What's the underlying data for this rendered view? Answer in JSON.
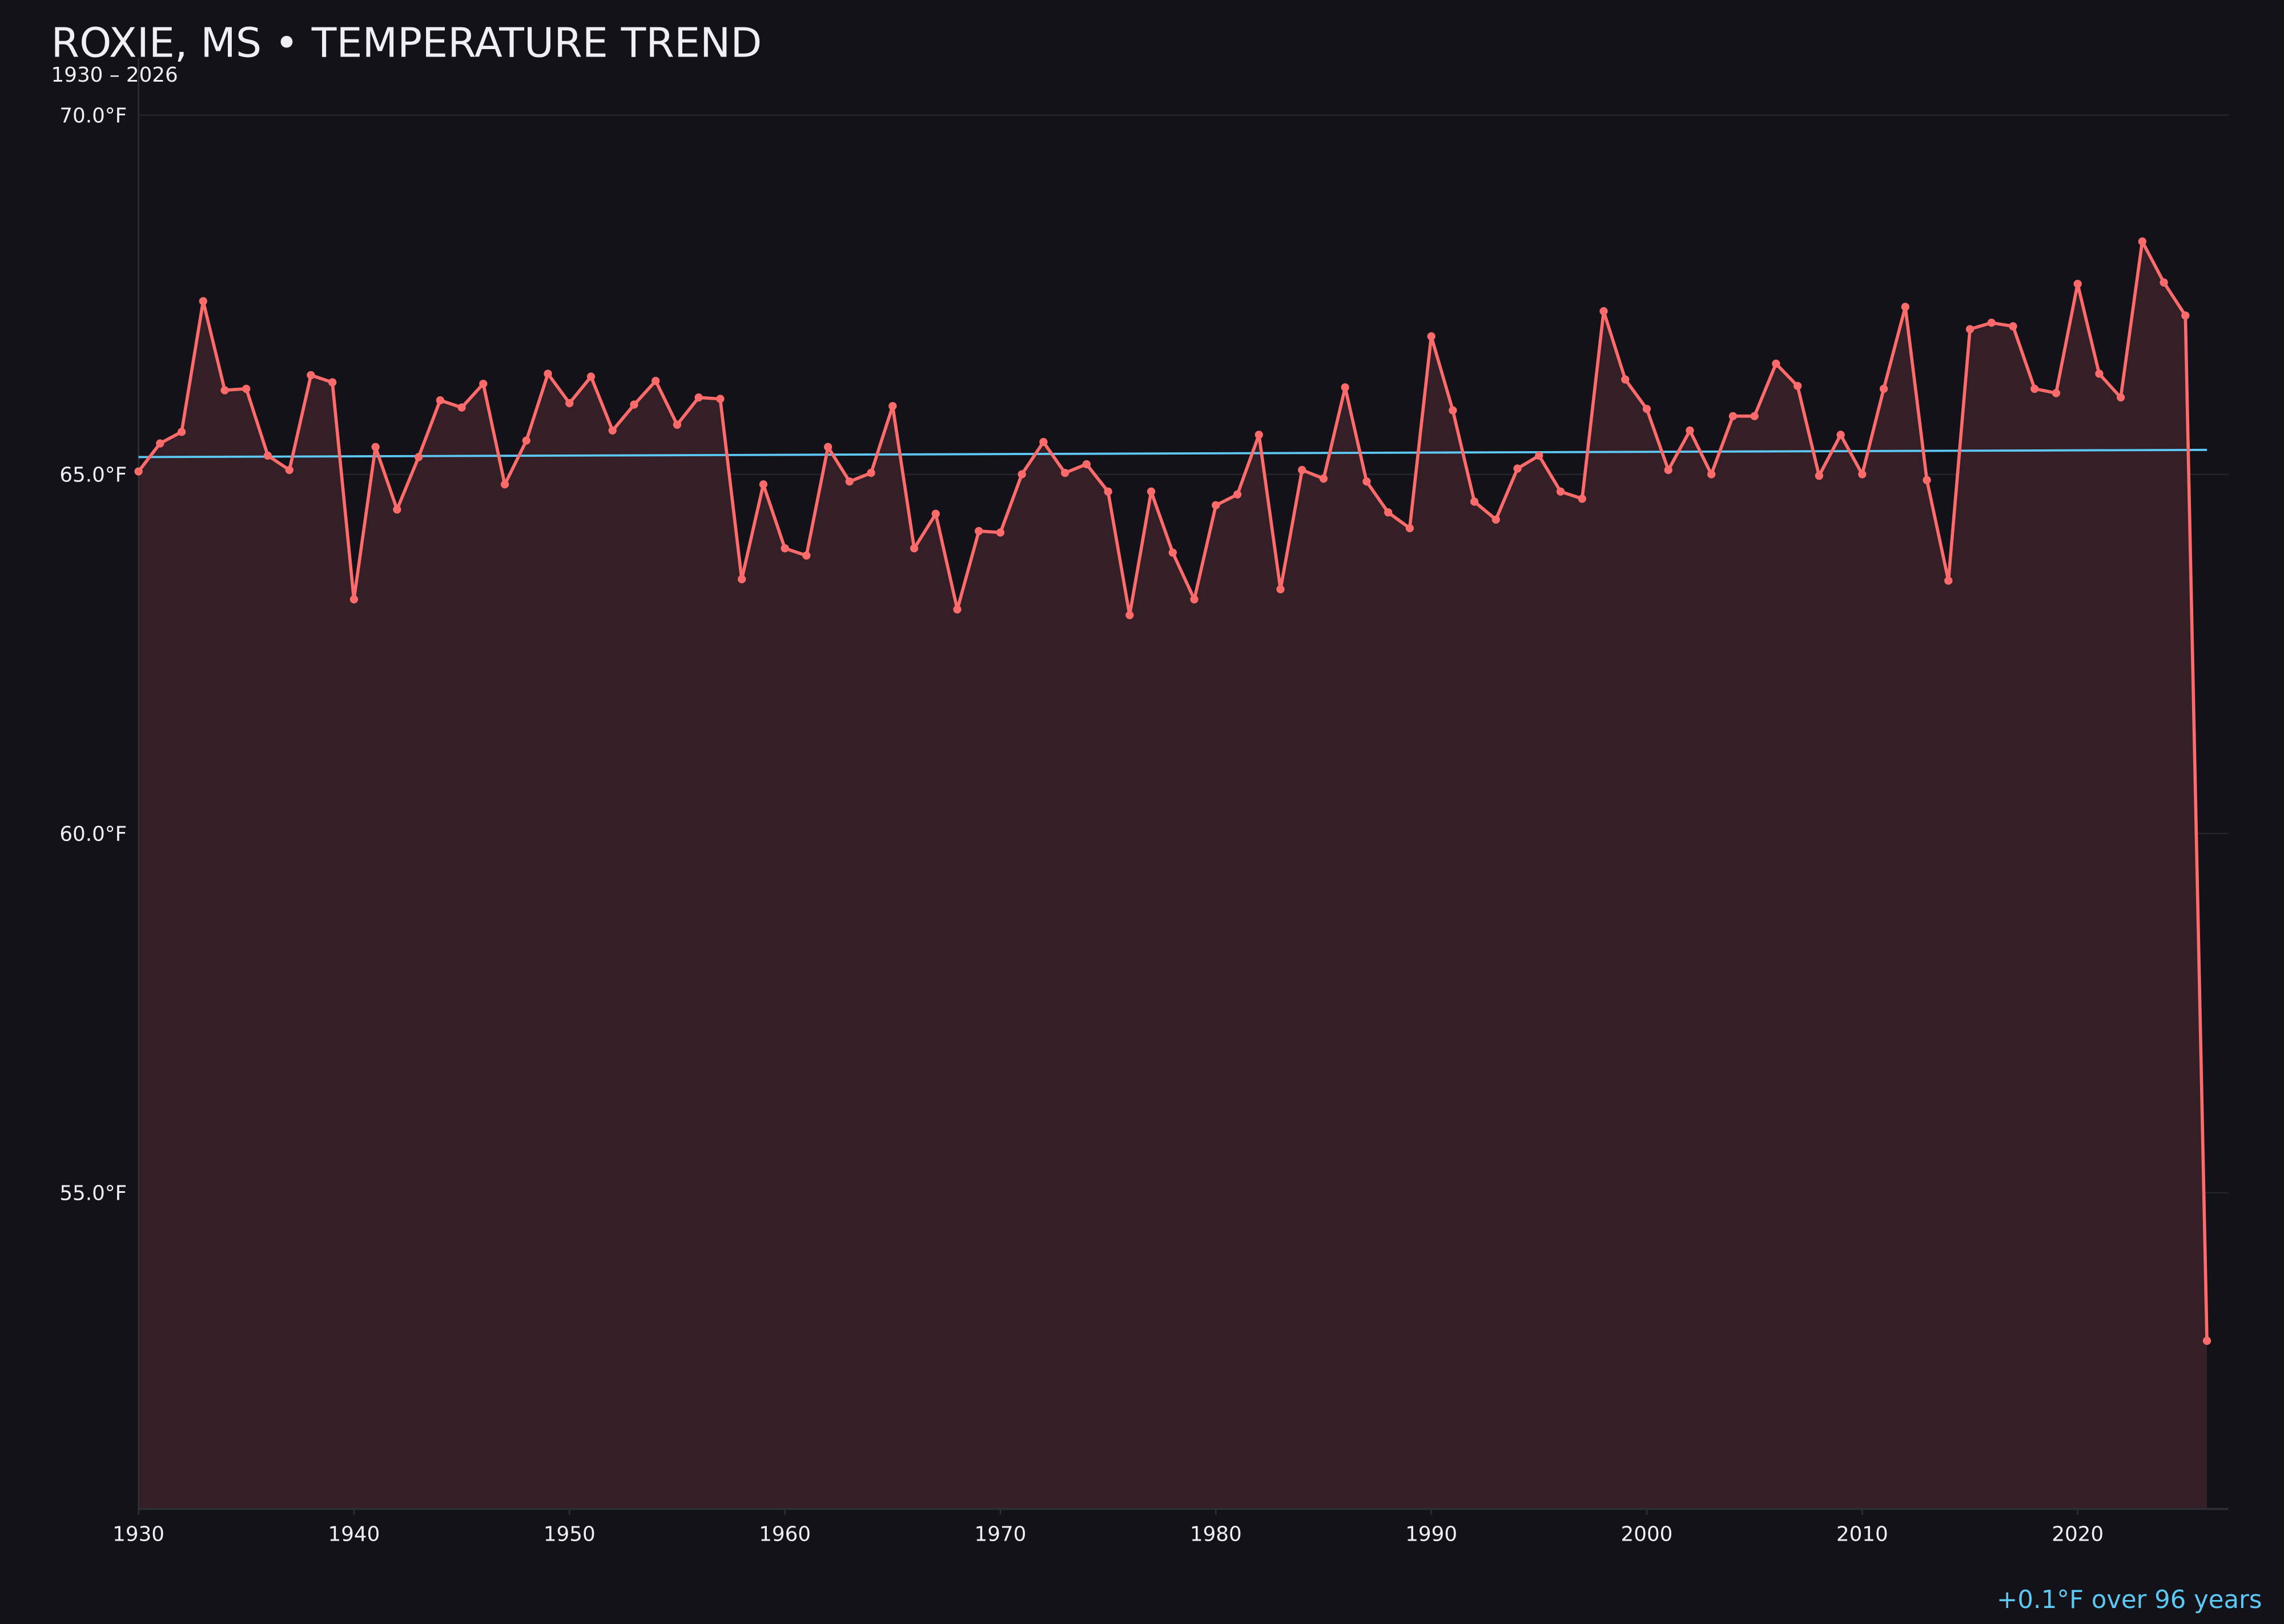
{
  "chart_data": {
    "type": "line",
    "title": "ROXIE, MS • TEMPERATURE TREND",
    "subtitle": "1930 – 2026",
    "annotation": "+0.1°F over 96 years",
    "xlabel": "",
    "ylabel": "",
    "xlim": [
      1930,
      2027
    ],
    "ylim": [
      50.6,
      70.6
    ],
    "grid": true,
    "x_ticks": [
      "1930",
      "1940",
      "1950",
      "1960",
      "1970",
      "1980",
      "1990",
      "2000",
      "2010",
      "2020"
    ],
    "y_ticks": [
      "55.0°F",
      "60.0°F",
      "65.0°F",
      "70.0°F"
    ],
    "y_tick_values": [
      55,
      60,
      65,
      70
    ],
    "colors": {
      "background": "#121218",
      "line": "#ff6b6b",
      "fill": "#351f26",
      "trend": "#5ec8f5",
      "text": "#f0f0f4",
      "grid": "#25252c"
    },
    "series": [
      {
        "x": [
          1930,
          1931,
          1932,
          1933,
          1934,
          1935,
          1936,
          1937,
          1938,
          1939,
          1940,
          1941,
          1942,
          1943,
          1944,
          1945,
          1946,
          1947,
          1948,
          1949,
          1950,
          1951,
          1952,
          1953,
          1954,
          1955,
          1956,
          1957,
          1958,
          1959,
          1960,
          1961,
          1962,
          1963,
          1964,
          1965,
          1966,
          1967,
          1968,
          1969,
          1970,
          1971,
          1972,
          1973,
          1974,
          1975,
          1976,
          1977,
          1978,
          1979,
          1980,
          1981,
          1982,
          1983,
          1984,
          1985,
          1986,
          1987,
          1988,
          1989,
          1990,
          1991,
          1992,
          1993,
          1994,
          1995,
          1996,
          1997,
          1998,
          1999,
          2000,
          2001,
          2002,
          2003,
          2004,
          2005,
          2006,
          2007,
          2008,
          2009,
          2010,
          2011,
          2012,
          2013,
          2014,
          2015,
          2016,
          2017,
          2018,
          2019,
          2020,
          2021,
          2022,
          2023,
          2024,
          2025,
          2026
        ],
        "values": [
          65.04,
          65.43,
          65.59,
          67.41,
          66.17,
          66.19,
          65.26,
          65.06,
          66.38,
          66.28,
          63.26,
          65.38,
          64.51,
          65.24,
          66.03,
          65.93,
          66.26,
          64.86,
          65.47,
          66.4,
          65.99,
          66.36,
          65.61,
          65.97,
          66.3,
          65.69,
          66.07,
          66.05,
          63.54,
          64.86,
          63.97,
          63.87,
          65.38,
          64.9,
          65.02,
          65.95,
          63.97,
          64.45,
          63.12,
          64.21,
          64.19,
          65.0,
          65.45,
          65.02,
          65.14,
          64.76,
          63.04,
          64.76,
          63.91,
          63.26,
          64.57,
          64.72,
          65.55,
          63.4,
          65.06,
          64.94,
          66.21,
          64.9,
          64.47,
          64.25,
          66.92,
          65.89,
          64.62,
          64.37,
          65.08,
          65.26,
          64.76,
          64.66,
          67.27,
          66.32,
          65.91,
          65.06,
          65.61,
          65.0,
          65.81,
          65.81,
          66.54,
          66.23,
          64.98,
          65.55,
          65.0,
          66.19,
          67.33,
          64.92,
          63.52,
          67.02,
          67.11,
          67.06,
          66.19,
          66.13,
          67.65,
          66.4,
          66.07,
          68.24,
          67.67,
          67.21,
          52.94
        ]
      }
    ],
    "trend": {
      "x": [
        1930,
        2026
      ],
      "values": [
        65.24,
        65.34
      ]
    }
  }
}
